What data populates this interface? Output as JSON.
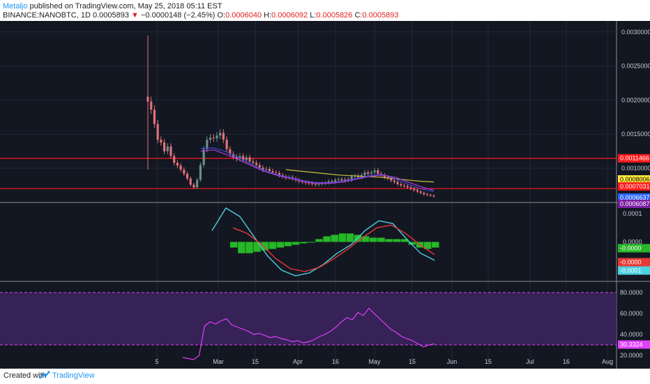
{
  "header": {
    "author": "Metaljo",
    "published_text": "published on TradingView.com, May 25, 2018 05:11 EST",
    "symbol": "BINANCE:NANOBTC, 1D",
    "last": "0.0005893",
    "change_arrow": "▼",
    "change": "−0.0000148 (−2.45%)",
    "o_label": "O:",
    "o": "0.0006040",
    "h_label": "H:",
    "h": "0.0006092",
    "l_label": "L:",
    "l": "0.0005826",
    "c_label": "C:",
    "c": "0.0005893"
  },
  "footer": {
    "created_with": "Created with",
    "brand": "TradingView"
  },
  "colors": {
    "background": "#131722",
    "up": "#6b8f8c",
    "down": "#e0717a",
    "resistance": "#ff1a1a",
    "ma_yellow": "#c9c23a",
    "ma_blue": "#3b4cd8",
    "ma_purple": "#b23cd8",
    "macd_line": "#4dd0e1",
    "signal_line": "#e53935",
    "histogram": "#27b827",
    "rsi_line": "#e040fb",
    "rsi_band": "#3d2460"
  },
  "chart_data": [
    {
      "type": "candlestick",
      "x_tick_labels": [
        "5",
        "Mar",
        "15",
        "Apr",
        "16",
        "May",
        "15",
        "Jun",
        "15",
        "Jul",
        "16",
        "Aug"
      ],
      "y_tick_labels": [
        "0.0030000",
        "0.0025000",
        "0.0020000",
        "0.0015000",
        "0.0010000"
      ],
      "ylim": [
        0.00055,
        0.0031
      ],
      "grid": true,
      "price_labels": [
        {
          "text": "0.0011466",
          "color": "#ff1a1a"
        },
        {
          "text": "0.0008006",
          "color": "#ffeb3b"
        },
        {
          "text": "0.0007031",
          "color": "#ff1a1a"
        },
        {
          "text": "0.0006637",
          "color": "#2962ff"
        },
        {
          "text": "0.0006087",
          "color": "#7b1fa2"
        }
      ],
      "horizontal_lines": [
        0.0011466,
        0.0007031
      ],
      "series": [
        {
          "name": "price",
          "values": [
            0.00198,
            0.00186,
            0.00165,
            0.00142,
            0.00138,
            0.00125,
            0.00132,
            0.00118,
            0.00108,
            0.00104,
            0.00098,
            0.00092,
            0.00085,
            0.00076,
            0.00072,
            0.00083,
            0.00105,
            0.00128,
            0.00142,
            0.00145,
            0.00144,
            0.00148,
            0.00152,
            0.00142,
            0.00128,
            0.00121,
            0.00117,
            0.00114,
            0.00118,
            0.00112,
            0.00116,
            0.0011,
            0.00108,
            0.00105,
            0.00101,
            0.00098,
            0.00099,
            0.00096,
            0.00094,
            0.00093,
            0.0009,
            0.00088,
            0.00086,
            0.00087,
            0.00085,
            0.00083,
            0.00081,
            0.0008,
            0.00079,
            0.00078,
            0.00077,
            0.00076,
            0.00077,
            0.00078,
            0.00079,
            0.00081,
            0.0008,
            0.00083,
            0.00084,
            0.00082,
            0.00084,
            0.00083,
            0.00088,
            0.00089,
            0.00087,
            0.0009,
            0.00094,
            0.00092,
            0.00094,
            0.00097,
            0.00092,
            0.0009,
            0.00087,
            0.00085,
            0.00082,
            0.0008,
            0.00077,
            0.00075,
            0.00074,
            0.00072,
            0.0007,
            0.00068,
            0.00066,
            0.00064,
            0.00062,
            0.00061,
            0.0006,
            0.00059
          ]
        },
        {
          "name": "ma_yellow",
          "values": [
            0.00098,
            0.00096,
            0.00094,
            0.00092,
            0.0009,
            0.00089,
            0.00088,
            0.00087,
            0.00085,
            0.00083,
            0.00081,
            0.0008
          ]
        },
        {
          "name": "ma_blue",
          "values": [
            0.00129,
            0.0013,
            0.00124,
            0.00115,
            0.00105,
            0.00096,
            0.0009,
            0.00086,
            0.00081,
            0.00079,
            0.00079,
            0.00081,
            0.00085,
            0.00089,
            0.00091,
            0.00085,
            0.00077,
            0.0007,
            0.00066
          ]
        },
        {
          "name": "ma_purple",
          "values": [
            0.00125,
            0.00127,
            0.0012,
            0.00112,
            0.00103,
            0.00095,
            0.00089,
            0.00085,
            0.0008,
            0.00078,
            0.00078,
            0.0008,
            0.00084,
            0.00088,
            0.0009,
            0.00087,
            0.0008,
            0.00073,
            0.00068
          ]
        }
      ]
    },
    {
      "type": "line",
      "name": "MACD",
      "y_tick_labels": [
        "0.0001",
        "0.0000",
        "-0.0001"
      ],
      "price_labels": [
        {
          "text": "-0.0000",
          "color": "#27b827"
        },
        {
          "text": "-0.0000",
          "color": "#e53935"
        },
        {
          "text": "-0.0001",
          "color": "#4dd0e1"
        }
      ],
      "ylim": [
        -0.000125,
        0.000125
      ],
      "series": [
        {
          "name": "macd",
          "values": [
            4e-05,
            0.00012,
            9e-05,
            2e-05,
            -5e-05,
            -0.0001,
            -0.00012,
            -0.00011,
            -8e-05,
            -4e-05,
            -1e-05,
            4e-05,
            7.5e-05,
            6.5e-05,
            1e-05,
            -4e-05,
            -6.5e-05
          ]
        },
        {
          "name": "signal",
          "values": [
            5e-05,
            3e-05,
            -1e-05,
            -6e-05,
            -9.5e-05,
            -0.000105,
            -9e-05,
            -6e-05,
            -2.5e-05,
            1.5e-05,
            5e-05,
            6e-05,
            3e-05,
            -1e-05,
            -4.5e-05
          ]
        },
        {
          "name": "histogram",
          "values": [
            -2e-05,
            -4e-05,
            -4e-05,
            -3.5e-05,
            -3e-05,
            -2.5e-05,
            -2e-05,
            -1.5e-05,
            -1e-05,
            -5e-06,
            0.0,
            1e-05,
            2e-05,
            2.5e-05,
            3e-05,
            3e-05,
            2.5e-05,
            2e-05,
            1.5e-05,
            1.5e-05,
            1e-05,
            1e-05,
            1e-05,
            -1e-05,
            -2e-05,
            -2.5e-05,
            -2e-05
          ]
        }
      ]
    },
    {
      "type": "line",
      "name": "RSI",
      "y_tick_labels": [
        "80.0000",
        "60.0000",
        "40.0000",
        "20.0000"
      ],
      "price_labels": [
        {
          "text": "30.3324",
          "color": "#e040fb"
        }
      ],
      "ylim": [
        10,
        90
      ],
      "bands": [
        30,
        80
      ],
      "series": [
        {
          "name": "rsi",
          "values": [
            18,
            17,
            16,
            20,
            48,
            52,
            50,
            53,
            55,
            49,
            47,
            45,
            43,
            40,
            41,
            39,
            37,
            38,
            36,
            35,
            33,
            34,
            32,
            33,
            35,
            38,
            40,
            43,
            47,
            52,
            56,
            54,
            61,
            58,
            65,
            60,
            55,
            50,
            45,
            42,
            38,
            36,
            34,
            31,
            28,
            30,
            31
          ]
        }
      ]
    }
  ]
}
